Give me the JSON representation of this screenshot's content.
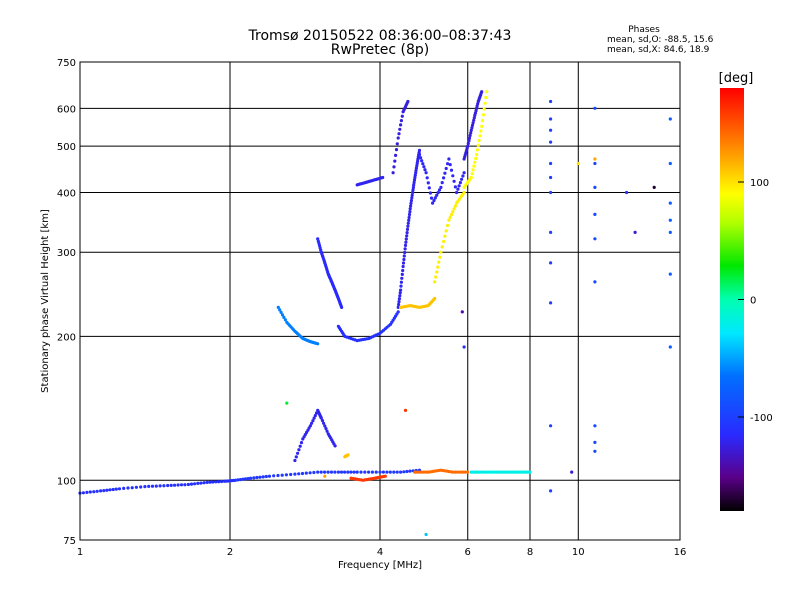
{
  "chart_data": {
    "type": "scatter",
    "title": "Tromsø 20150522 08:36:00–08:37:43",
    "subtitle": "RwPretec (8p)",
    "xlabel": "Frequency [MHz]",
    "ylabel": "Stationary phase Virtual Height [km]",
    "x_scale": "log",
    "y_scale": "log",
    "xlim": [
      1,
      16
    ],
    "ylim": [
      75,
      750
    ],
    "x_ticks": [
      1,
      2,
      4,
      6,
      8,
      10,
      16
    ],
    "x_tick_labels": [
      "1",
      "2",
      "4",
      "6",
      "8",
      "10",
      "16"
    ],
    "y_ticks": [
      75,
      100,
      200,
      300,
      400,
      500,
      600,
      750
    ],
    "y_tick_labels": [
      "75",
      "100",
      "200",
      "300",
      "400",
      "500",
      "600",
      "750"
    ],
    "grid": true,
    "phase_stats": {
      "heading": "Phases",
      "line_o": "mean, sd,O:  -88.5, 15.6",
      "line_x": "mean, sd,X:  84.6, 18.9"
    },
    "colorbar": {
      "label": "[deg]",
      "range": [
        -180,
        180
      ],
      "ticks": [
        100,
        0,
        -100
      ],
      "tick_labels": [
        "100",
        "0",
        "-100"
      ]
    },
    "traces": [
      {
        "x": [
          1.0,
          1.1,
          1.2,
          1.35,
          1.5,
          1.65,
          1.8,
          1.95,
          2.05
        ],
        "y": [
          94,
          95,
          96,
          97,
          97.5,
          98,
          99,
          99.5,
          100
        ],
        "phase": -110
      },
      {
        "x": [
          2.05,
          2.2,
          2.4,
          2.7,
          3.0,
          3.3,
          3.6,
          4.0,
          4.4,
          4.8
        ],
        "y": [
          100,
          101,
          102,
          103,
          104,
          104,
          104,
          104,
          104,
          105
        ],
        "phase": -105
      },
      {
        "x": [
          4.7,
          5.0,
          5.3,
          5.6,
          6.0
        ],
        "y": [
          104,
          104,
          105,
          104,
          104
        ],
        "phase": 140
      },
      {
        "x": [
          6.1,
          6.4,
          6.8,
          7.2,
          7.6,
          8.0
        ],
        "y": [
          104,
          104,
          104,
          104,
          104,
          104
        ],
        "phase": -20
      },
      {
        "x": [
          3.5,
          3.7,
          3.9,
          4.1
        ],
        "y": [
          101,
          100,
          101,
          102
        ],
        "phase": 160
      },
      {
        "x": [
          2.5,
          2.6,
          2.7,
          2.8,
          2.9,
          3.0
        ],
        "y": [
          230,
          214,
          205,
          198,
          195,
          193
        ],
        "phase": -60
      },
      {
        "x": [
          3.0,
          3.05,
          3.1,
          3.15,
          3.2,
          3.25,
          3.3,
          3.35
        ],
        "y": [
          320,
          300,
          285,
          270,
          260,
          250,
          240,
          230
        ],
        "phase": -115
      },
      {
        "x": [
          3.3,
          3.4,
          3.6,
          3.8,
          4.0,
          4.2,
          4.35
        ],
        "y": [
          210,
          200,
          196,
          198,
          203,
          212,
          225
        ],
        "phase": -110
      },
      {
        "x": [
          4.35,
          4.4,
          4.45,
          4.5,
          4.55,
          4.6,
          4.65,
          4.7,
          4.75,
          4.8
        ],
        "y": [
          230,
          250,
          280,
          310,
          340,
          370,
          400,
          430,
          460,
          490
        ],
        "phase": -120
      },
      {
        "x": [
          4.8,
          4.95,
          5.1,
          5.3,
          5.5,
          5.7,
          5.9
        ],
        "y": [
          480,
          440,
          380,
          410,
          470,
          400,
          440
        ],
        "phase": -118
      },
      {
        "x": [
          5.9,
          6.0,
          6.1,
          6.2,
          6.3,
          6.4
        ],
        "y": [
          470,
          500,
          540,
          580,
          620,
          650
        ],
        "phase": -125
      },
      {
        "x": [
          4.4,
          4.6,
          4.8,
          5.0,
          5.15
        ],
        "y": [
          230,
          232,
          230,
          232,
          240
        ],
        "phase": 110
      },
      {
        "x": [
          5.15,
          5.3,
          5.5,
          5.7,
          5.9
        ],
        "y": [
          260,
          300,
          350,
          380,
          400
        ],
        "phase": 95
      },
      {
        "x": [
          5.9,
          6.1,
          6.25,
          6.4,
          6.55
        ],
        "y": [
          410,
          430,
          480,
          550,
          650
        ],
        "phase": 90
      },
      {
        "x": [
          4.25,
          4.35,
          4.45,
          4.55
        ],
        "y": [
          440,
          520,
          590,
          620
        ],
        "phase": -125
      },
      {
        "x": [
          3.6,
          3.75,
          3.9,
          4.05
        ],
        "y": [
          415,
          420,
          425,
          430
        ],
        "phase": -120
      },
      {
        "x": [
          2.7,
          2.8,
          2.9,
          3.0,
          3.05,
          3.15,
          3.25
        ],
        "y": [
          110,
          122,
          130,
          140,
          135,
          125,
          118
        ],
        "phase": -120
      },
      {
        "x": [
          3.4,
          3.45
        ],
        "y": [
          112,
          113
        ],
        "phase": 110
      }
    ],
    "columns": [
      {
        "x": 8.8,
        "y": [
          95,
          130,
          235,
          285,
          330,
          400,
          430,
          460,
          510,
          540,
          570,
          620
        ],
        "phase": -100
      },
      {
        "x": 10.8,
        "y": [
          115,
          120,
          130,
          260,
          320,
          360,
          410,
          460,
          600
        ],
        "phase": -95
      },
      {
        "x": 15.3,
        "y": [
          190,
          270,
          330,
          350,
          380,
          460,
          570
        ],
        "phase": -80
      }
    ],
    "isolated_points": [
      {
        "x": 2.6,
        "y": 145,
        "phase": 20
      },
      {
        "x": 4.5,
        "y": 140,
        "phase": 160
      },
      {
        "x": 5.85,
        "y": 225,
        "phase": -140
      },
      {
        "x": 5.9,
        "y": 190,
        "phase": -110
      },
      {
        "x": 12.5,
        "y": 400,
        "phase": -110
      },
      {
        "x": 13.0,
        "y": 330,
        "phase": -130
      },
      {
        "x": 14.2,
        "y": 410,
        "phase": -170
      },
      {
        "x": 10.0,
        "y": 460,
        "phase": 100
      },
      {
        "x": 10.8,
        "y": 470,
        "phase": 120
      },
      {
        "x": 9.7,
        "y": 104,
        "phase": -130
      },
      {
        "x": 4.95,
        "y": 77,
        "phase": -40
      },
      {
        "x": 3.1,
        "y": 102,
        "phase": 120
      }
    ]
  }
}
